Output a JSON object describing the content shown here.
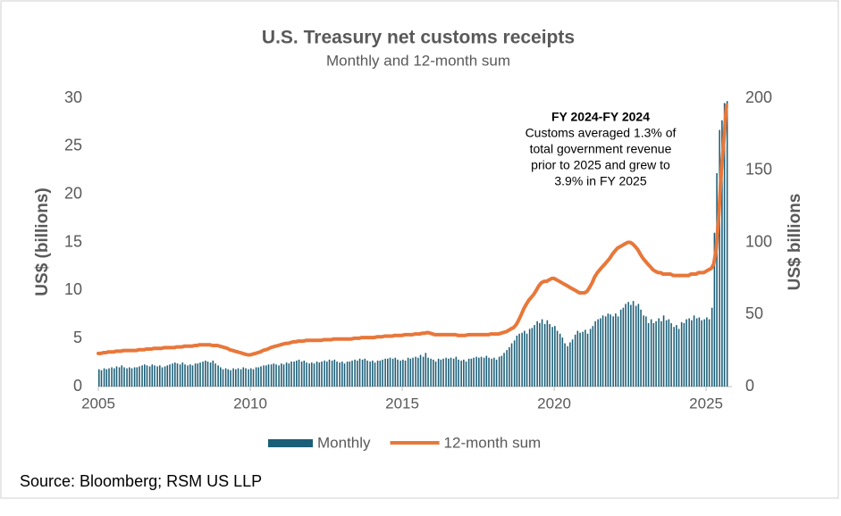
{
  "chart_data": {
    "type": "combo",
    "title": "U.S. Treasury net customs receipts",
    "subtitle": "Monthly and 12-month sum",
    "y_label": "US$ (billions)",
    "y2_label": "US$ billions",
    "source": "Source: Bloomberg; RSM US LLP",
    "annotation": {
      "title": "FY 2024-FY 2024",
      "lines": [
        "Customs averaged 1.3% of",
        "total government revenue",
        "prior to 2025 and grew to",
        "3.9% in FY 2025"
      ]
    },
    "xlim": [
      2005,
      2025.85
    ],
    "xticks": [
      2005,
      2010,
      2015,
      2020,
      2025
    ],
    "ylim": [
      0,
      30
    ],
    "yticks": [
      0,
      5,
      10,
      15,
      20,
      25,
      30
    ],
    "y2lim": [
      0,
      200
    ],
    "y2ticks": [
      0,
      50,
      100,
      150,
      200
    ],
    "grid": false,
    "legend": "bottom",
    "x": [
      2005,
      2005.08,
      2005.17,
      2005.25,
      2005.33,
      2005.42,
      2005.5,
      2005.58,
      2005.67,
      2005.75,
      2005.83,
      2005.92,
      2006,
      2006.08,
      2006.17,
      2006.25,
      2006.33,
      2006.42,
      2006.5,
      2006.58,
      2006.67,
      2006.75,
      2006.83,
      2006.92,
      2007,
      2007.08,
      2007.17,
      2007.25,
      2007.33,
      2007.42,
      2007.5,
      2007.58,
      2007.67,
      2007.75,
      2007.83,
      2007.92,
      2008,
      2008.08,
      2008.17,
      2008.25,
      2008.33,
      2008.42,
      2008.5,
      2008.58,
      2008.67,
      2008.75,
      2008.83,
      2008.92,
      2009,
      2009.08,
      2009.17,
      2009.25,
      2009.33,
      2009.42,
      2009.5,
      2009.58,
      2009.67,
      2009.75,
      2009.83,
      2009.92,
      2010,
      2010.08,
      2010.17,
      2010.25,
      2010.33,
      2010.42,
      2010.5,
      2010.58,
      2010.67,
      2010.75,
      2010.83,
      2010.92,
      2011,
      2011.08,
      2011.17,
      2011.25,
      2011.33,
      2011.42,
      2011.5,
      2011.58,
      2011.67,
      2011.75,
      2011.83,
      2011.92,
      2012,
      2012.08,
      2012.17,
      2012.25,
      2012.33,
      2012.42,
      2012.5,
      2012.58,
      2012.67,
      2012.75,
      2012.83,
      2012.92,
      2013,
      2013.08,
      2013.17,
      2013.25,
      2013.33,
      2013.42,
      2013.5,
      2013.58,
      2013.67,
      2013.75,
      2013.83,
      2013.92,
      2014,
      2014.08,
      2014.17,
      2014.25,
      2014.33,
      2014.42,
      2014.5,
      2014.58,
      2014.67,
      2014.75,
      2014.83,
      2014.92,
      2015,
      2015.08,
      2015.17,
      2015.25,
      2015.33,
      2015.42,
      2015.5,
      2015.58,
      2015.67,
      2015.75,
      2015.83,
      2015.92,
      2016,
      2016.08,
      2016.17,
      2016.25,
      2016.33,
      2016.42,
      2016.5,
      2016.58,
      2016.67,
      2016.75,
      2016.83,
      2016.92,
      2017,
      2017.08,
      2017.17,
      2017.25,
      2017.33,
      2017.42,
      2017.5,
      2017.58,
      2017.67,
      2017.75,
      2017.83,
      2017.92,
      2018,
      2018.08,
      2018.17,
      2018.25,
      2018.33,
      2018.42,
      2018.5,
      2018.58,
      2018.67,
      2018.75,
      2018.83,
      2018.92,
      2019,
      2019.08,
      2019.17,
      2019.25,
      2019.33,
      2019.42,
      2019.5,
      2019.58,
      2019.67,
      2019.75,
      2019.83,
      2019.92,
      2020,
      2020.08,
      2020.17,
      2020.25,
      2020.33,
      2020.42,
      2020.5,
      2020.58,
      2020.67,
      2020.75,
      2020.83,
      2020.92,
      2021,
      2021.08,
      2021.17,
      2021.25,
      2021.33,
      2021.42,
      2021.5,
      2021.58,
      2021.67,
      2021.75,
      2021.83,
      2021.92,
      2022,
      2022.08,
      2022.17,
      2022.25,
      2022.33,
      2022.42,
      2022.5,
      2022.58,
      2022.67,
      2022.75,
      2022.83,
      2022.92,
      2023,
      2023.08,
      2023.17,
      2023.25,
      2023.33,
      2023.42,
      2023.5,
      2023.58,
      2023.67,
      2023.75,
      2023.83,
      2023.92,
      2024,
      2024.08,
      2024.17,
      2024.25,
      2024.33,
      2024.42,
      2024.5,
      2024.58,
      2024.67,
      2024.75,
      2024.83,
      2024.92,
      2025,
      2025.08,
      2025.17,
      2025.25,
      2025.33,
      2025.42,
      2025.5,
      2025.58,
      2025.67
    ],
    "series": [
      {
        "name": "Monthly",
        "type": "bar",
        "color": "#1b5e77",
        "values": [
          1.8,
          1.7,
          1.9,
          1.8,
          1.9,
          2.0,
          1.9,
          2.1,
          2.0,
          2.2,
          2.0,
          1.9,
          2.0,
          1.9,
          2.0,
          2.0,
          2.1,
          2.2,
          2.3,
          2.2,
          2.1,
          2.3,
          2.2,
          2.1,
          2.2,
          2.0,
          2.1,
          2.2,
          2.3,
          2.4,
          2.5,
          2.4,
          2.3,
          2.5,
          2.3,
          2.2,
          2.3,
          2.2,
          2.4,
          2.4,
          2.5,
          2.6,
          2.7,
          2.6,
          2.5,
          2.7,
          2.4,
          2.2,
          2.0,
          1.8,
          1.9,
          1.8,
          1.7,
          1.9,
          1.8,
          1.9,
          1.8,
          2.0,
          1.9,
          1.8,
          1.9,
          1.8,
          2.0,
          2.0,
          2.1,
          2.2,
          2.2,
          2.3,
          2.3,
          2.4,
          2.3,
          2.2,
          2.4,
          2.3,
          2.5,
          2.4,
          2.6,
          2.6,
          2.7,
          2.8,
          2.6,
          2.7,
          2.5,
          2.4,
          2.5,
          2.4,
          2.6,
          2.5,
          2.6,
          2.7,
          2.6,
          2.8,
          2.7,
          2.8,
          2.6,
          2.5,
          2.6,
          2.4,
          2.6,
          2.6,
          2.7,
          2.8,
          2.7,
          2.9,
          2.8,
          2.9,
          2.7,
          2.6,
          2.7,
          2.5,
          2.7,
          2.7,
          2.8,
          2.9,
          2.9,
          3.0,
          2.9,
          3.0,
          2.8,
          2.7,
          2.8,
          2.7,
          3.0,
          2.9,
          3.0,
          3.1,
          3.0,
          3.3,
          3.1,
          3.5,
          3.0,
          2.9,
          2.8,
          2.6,
          2.9,
          2.8,
          2.9,
          3.0,
          2.9,
          3.0,
          2.9,
          3.1,
          2.8,
          2.7,
          2.8,
          2.6,
          2.9,
          2.9,
          3.0,
          3.1,
          3.0,
          3.1,
          3.0,
          3.2,
          3.0,
          2.9,
          3.0,
          2.8,
          3.1,
          3.2,
          3.5,
          3.8,
          4.1,
          4.5,
          4.8,
          5.3,
          5.5,
          5.6,
          5.8,
          5.5,
          6.0,
          6.1,
          6.4,
          6.8,
          6.6,
          7.0,
          6.5,
          6.9,
          6.5,
          6.2,
          6.3,
          5.8,
          5.5,
          5.1,
          4.5,
          4.2,
          4.6,
          4.9,
          5.4,
          5.8,
          5.6,
          5.7,
          5.9,
          5.5,
          6.0,
          6.3,
          6.8,
          7.0,
          7.1,
          7.4,
          7.3,
          7.6,
          7.5,
          7.3,
          7.6,
          7.3,
          8.0,
          8.2,
          8.6,
          8.8,
          8.5,
          8.9,
          8.4,
          8.6,
          8.0,
          7.4,
          7.3,
          6.6,
          7.0,
          6.6,
          6.8,
          7.1,
          6.8,
          7.4,
          6.9,
          7.0,
          6.6,
          6.2,
          6.4,
          6.0,
          6.7,
          6.6,
          7.0,
          7.1,
          6.9,
          7.4,
          7.1,
          7.2,
          6.9,
          7.0,
          7.2,
          7.0,
          8.2,
          16.0,
          22.2,
          26.7,
          27.7,
          29.5,
          29.7
        ]
      },
      {
        "name": "12-month sum",
        "type": "line",
        "axis": "y2",
        "color": "#e8773a",
        "values": [
          23,
          23,
          23.5,
          23.5,
          24,
          24,
          24,
          24.5,
          24.5,
          24.5,
          25,
          25,
          25,
          25,
          25,
          25,
          25.5,
          25.5,
          25.5,
          26,
          26,
          26,
          26.5,
          26.5,
          26.5,
          26.5,
          27,
          27,
          27,
          27,
          27,
          27.5,
          27.5,
          27.5,
          28,
          28,
          28,
          28,
          28.5,
          28.5,
          29,
          29,
          29,
          29,
          29,
          28.5,
          28.5,
          28.5,
          28,
          27.5,
          27,
          26.5,
          25.5,
          25,
          24.5,
          24,
          23.5,
          23,
          22.5,
          22,
          22,
          22.5,
          23,
          23.5,
          24,
          25,
          25.5,
          26,
          27,
          27.5,
          28,
          28.5,
          29,
          29.5,
          30,
          30,
          30.5,
          31,
          31,
          31.5,
          31.5,
          31.5,
          32,
          32,
          32,
          32,
          32,
          32,
          32,
          32.5,
          32.5,
          32.5,
          32.5,
          33,
          33,
          33,
          33,
          33,
          33,
          33,
          33,
          33.5,
          33.5,
          33.5,
          34,
          34,
          34,
          34,
          34,
          34,
          34.5,
          34.5,
          34.5,
          35,
          35,
          35,
          35,
          35.5,
          35.5,
          35.5,
          35.5,
          36,
          36,
          36,
          36,
          36.5,
          36.5,
          36.5,
          37,
          37,
          37.5,
          37,
          36.5,
          36,
          36,
          36,
          36,
          36,
          36,
          36,
          36,
          36,
          35.5,
          35.5,
          35.5,
          35.5,
          36,
          36,
          36,
          36,
          36,
          36,
          36,
          36,
          36,
          36.5,
          36.5,
          36.5,
          36.5,
          37,
          37.5,
          38,
          39,
          40,
          41,
          43,
          46,
          50,
          54,
          57,
          60,
          62,
          64,
          67,
          70,
          72,
          73,
          73,
          74,
          75,
          75,
          74,
          73,
          72,
          71,
          70,
          69,
          68,
          67,
          66,
          65,
          65,
          65,
          66,
          69,
          72,
          76,
          79,
          81,
          83,
          85,
          87,
          89,
          92,
          94,
          96,
          97,
          98,
          99,
          100,
          100,
          99,
          97,
          95,
          92,
          89,
          87,
          85,
          83,
          81,
          80,
          79,
          79,
          78,
          78,
          78,
          78,
          77,
          77,
          77,
          77,
          77,
          77,
          77,
          78,
          78,
          78,
          79,
          79,
          79,
          80,
          81,
          82,
          85,
          95,
          120,
          150,
          170,
          195
        ]
      }
    ]
  }
}
